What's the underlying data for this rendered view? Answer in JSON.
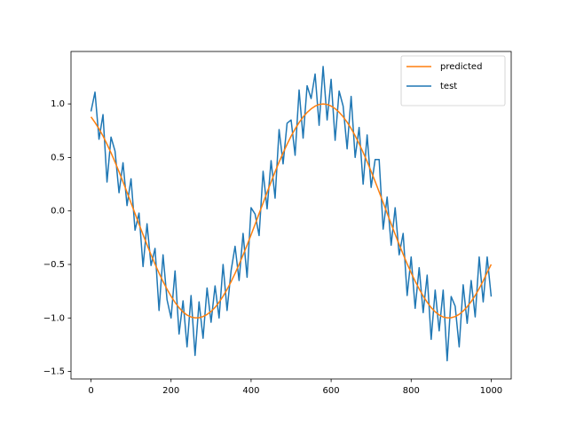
{
  "chart_data": {
    "type": "line",
    "x": [
      0,
      10,
      20,
      30,
      40,
      50,
      60,
      70,
      80,
      90,
      100,
      110,
      120,
      130,
      140,
      150,
      160,
      170,
      180,
      190,
      200,
      210,
      220,
      230,
      240,
      250,
      260,
      270,
      280,
      290,
      300,
      310,
      320,
      330,
      340,
      350,
      360,
      370,
      380,
      390,
      400,
      410,
      420,
      430,
      440,
      450,
      460,
      470,
      480,
      490,
      500,
      510,
      520,
      530,
      540,
      550,
      560,
      570,
      580,
      590,
      600,
      610,
      620,
      630,
      640,
      650,
      660,
      670,
      680,
      690,
      700,
      710,
      720,
      730,
      740,
      750,
      760,
      770,
      780,
      790,
      800,
      810,
      820,
      830,
      840,
      850,
      860,
      870,
      880,
      890,
      900,
      910,
      920,
      930,
      940,
      950,
      960,
      970,
      980,
      990,
      1000
    ],
    "series": [
      {
        "name": "predicted",
        "color": "#ff7f0e",
        "values": [
          0.879,
          0.826,
          0.767,
          0.7,
          0.624,
          0.543,
          0.457,
          0.366,
          0.272,
          0.174,
          0.075,
          -0.025,
          -0.124,
          -0.221,
          -0.317,
          -0.409,
          -0.497,
          -0.581,
          -0.659,
          -0.731,
          -0.797,
          -0.855,
          -0.904,
          -0.944,
          -0.973,
          -0.991,
          -0.999,
          -0.998,
          -0.987,
          -0.967,
          -0.94,
          -0.901,
          -0.853,
          -0.797,
          -0.733,
          -0.662,
          -0.584,
          -0.5,
          -0.412,
          -0.319,
          -0.223,
          -0.125,
          -0.025,
          0.074,
          0.174,
          0.271,
          0.366,
          0.457,
          0.542,
          0.623,
          0.699,
          0.766,
          0.826,
          0.878,
          0.92,
          0.954,
          0.979,
          0.995,
          1.0,
          0.995,
          0.98,
          0.956,
          0.922,
          0.88,
          0.829,
          0.77,
          0.703,
          0.628,
          0.547,
          0.461,
          0.37,
          0.276,
          0.178,
          0.079,
          -0.021,
          -0.12,
          -0.218,
          -0.313,
          -0.405,
          -0.494,
          -0.578,
          -0.656,
          -0.729,
          -0.795,
          -0.853,
          -0.903,
          -0.943,
          -0.972,
          -0.991,
          -0.999,
          -0.998,
          -0.987,
          -0.966,
          -0.935,
          -0.895,
          -0.847,
          -0.79,
          -0.725,
          -0.653,
          -0.575,
          -0.5
        ]
      },
      {
        "name": "test",
        "color": "#1f77b4",
        "values": [
          0.93,
          1.11,
          0.67,
          0.9,
          0.27,
          0.69,
          0.56,
          0.17,
          0.45,
          0.05,
          0.3,
          -0.18,
          -0.02,
          -0.52,
          -0.12,
          -0.51,
          -0.35,
          -0.93,
          -0.41,
          -0.83,
          -1.0,
          -0.56,
          -1.15,
          -0.84,
          -1.27,
          -0.79,
          -1.35,
          -0.85,
          -1.19,
          -0.72,
          -1.04,
          -0.7,
          -1.0,
          -0.5,
          -0.93,
          -0.56,
          -0.33,
          -0.65,
          -0.21,
          -0.62,
          0.03,
          -0.03,
          -0.23,
          0.37,
          0.02,
          0.47,
          0.12,
          0.76,
          0.44,
          0.82,
          0.85,
          0.52,
          1.13,
          0.68,
          1.17,
          1.05,
          1.28,
          0.8,
          1.35,
          0.85,
          1.23,
          0.66,
          1.12,
          0.98,
          0.58,
          1.07,
          0.5,
          0.78,
          0.25,
          0.71,
          0.22,
          0.48,
          0.48,
          -0.17,
          0.13,
          -0.32,
          0.03,
          -0.41,
          -0.21,
          -0.79,
          -0.43,
          -0.91,
          -0.53,
          -0.95,
          -0.6,
          -1.2,
          -0.74,
          -1.12,
          -0.74,
          -1.4,
          -0.8,
          -0.89,
          -1.27,
          -0.69,
          -1.05,
          -0.65,
          -0.99,
          -0.43,
          -0.85,
          -0.43,
          -0.8
        ]
      }
    ],
    "xlim": [
      -50,
      1050
    ],
    "xticks": [
      0,
      200,
      400,
      600,
      800,
      1000
    ],
    "ylim": [
      -1.57,
      1.49
    ],
    "yticks": [
      {
        "value": -1.5,
        "label": "−1.5"
      },
      {
        "value": -1.0,
        "label": "−1.0"
      },
      {
        "value": -0.5,
        "label": "−0.5"
      },
      {
        "value": 0.0,
        "label": "0.0"
      },
      0.5,
      {
        "value": 1.0,
        "label": "1.0"
      }
    ],
    "legend": "upper right"
  }
}
